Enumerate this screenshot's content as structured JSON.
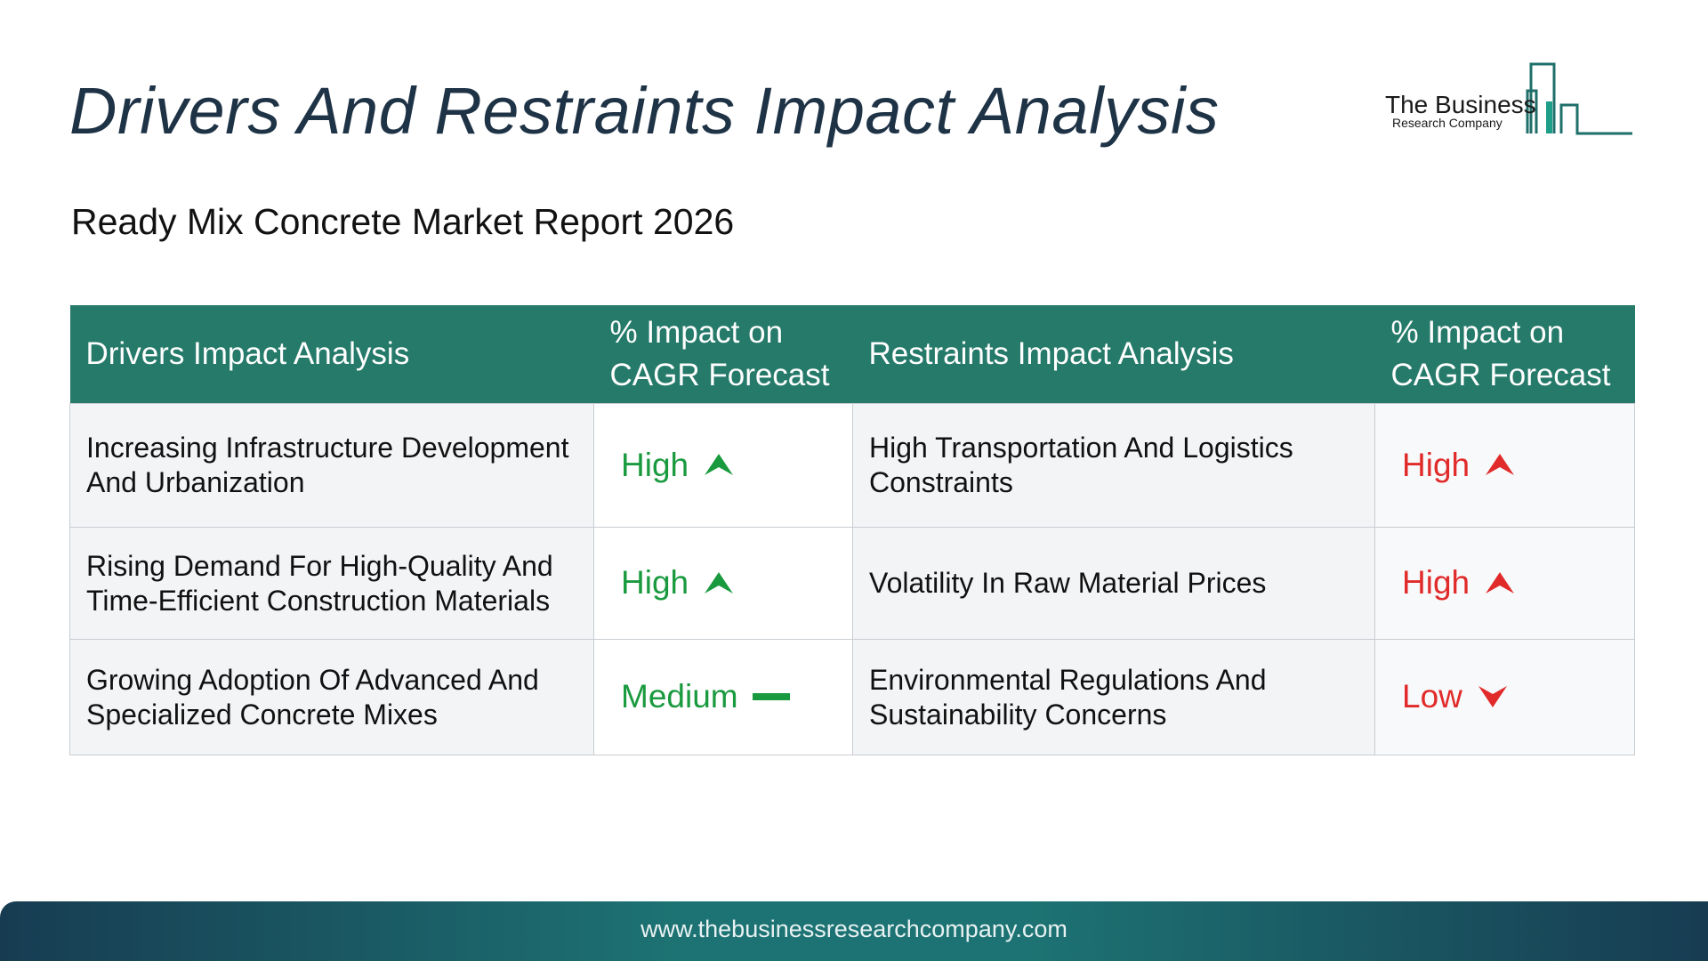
{
  "header": {
    "title": "Drivers And Restraints Impact Analysis",
    "subtitle": "Ready Mix Concrete Market Report 2026"
  },
  "logo": {
    "line1": "The Business",
    "line2": "Research Company",
    "icon": "building-bars-icon"
  },
  "table": {
    "headers": [
      "Drivers Impact Analysis",
      "% Impact on CAGR Forecast",
      "Restraints Impact Analysis",
      "% Impact on CAGR Forecast"
    ],
    "rows": [
      {
        "driver": "Increasing Infrastructure Development And Urbanization",
        "driver_impact": "High",
        "driver_icon": "up-arrow-icon",
        "restraint": "High Transportation And Logistics Constraints",
        "restraint_impact": "High",
        "restraint_icon": "up-arrow-icon"
      },
      {
        "driver": "Rising Demand For High-Quality And Time-Efficient Construction Materials",
        "driver_impact": "High",
        "driver_icon": "up-arrow-icon",
        "restraint": "Volatility In Raw Material Prices",
        "restraint_impact": "High",
        "restraint_icon": "up-arrow-icon"
      },
      {
        "driver": "Growing Adoption Of Advanced And Specialized Concrete Mixes",
        "driver_impact": "Medium",
        "driver_icon": "dash-icon",
        "restraint": "Environmental Regulations And Sustainability Concerns",
        "restraint_impact": "Low",
        "restraint_icon": "down-arrow-icon"
      }
    ]
  },
  "colors": {
    "header_bg": "#257a6a",
    "driver_green": "#1a9a3f",
    "restraint_red": "#e12a2a",
    "title": "#1f3346"
  },
  "footer": {
    "url": "www.thebusinessresearchcompany.com"
  }
}
